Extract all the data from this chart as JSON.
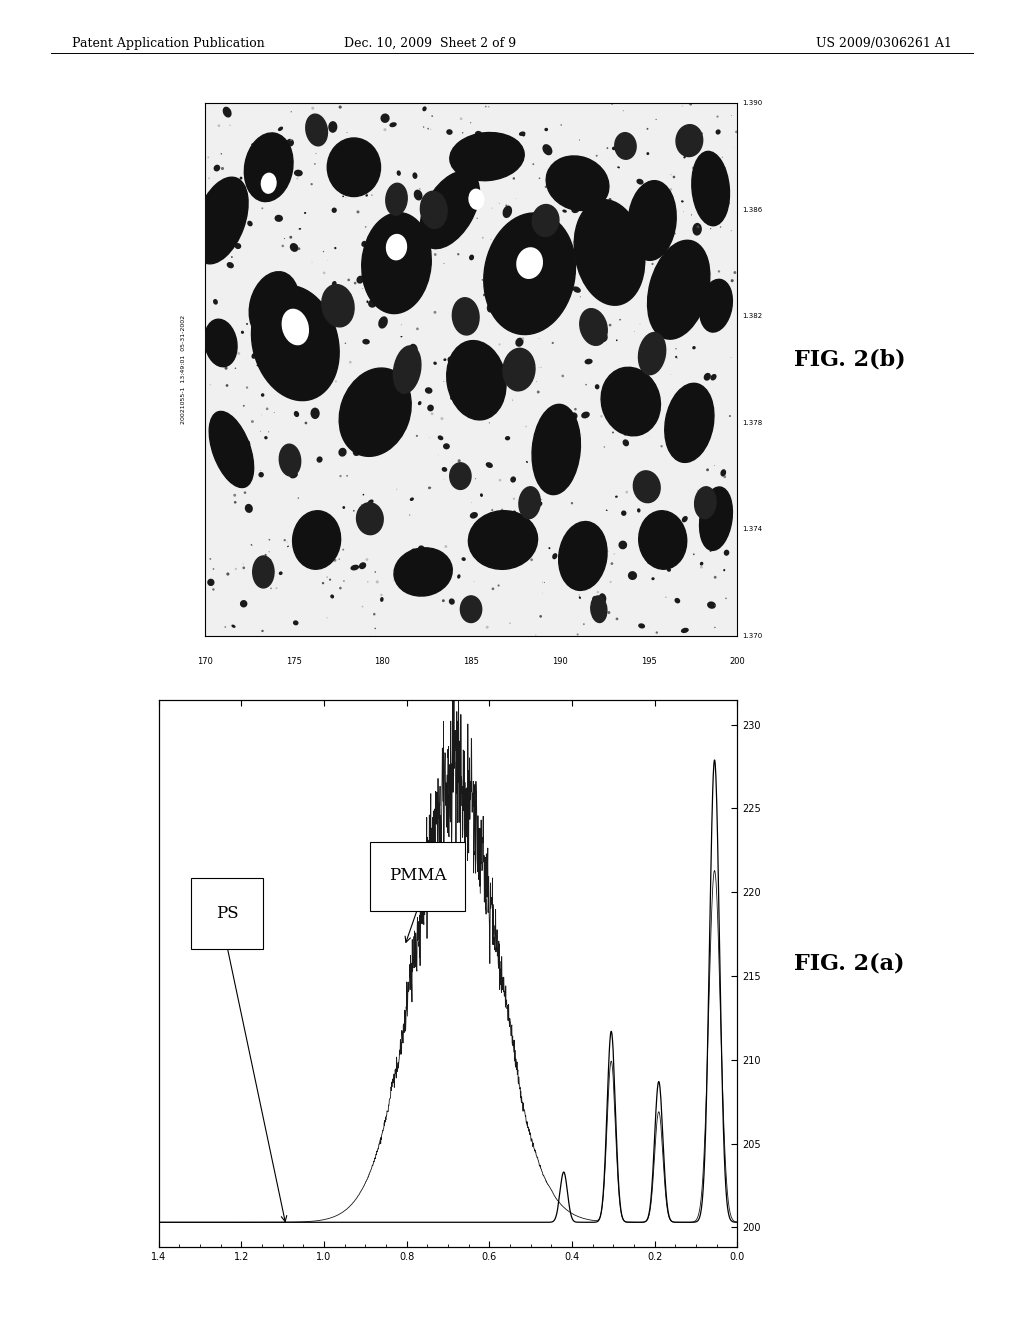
{
  "header_left": "Patent Application Publication",
  "header_center": "Dec. 10, 2009  Sheet 2 of 9",
  "header_right": "US 2009/0306261 A1",
  "fig2b_label": "FIG. 2(b)",
  "fig2a_label": "FIG. 2(a)",
  "ps_label": "PS",
  "pmma_label": "PMMA",
  "background_color": "#ffffff",
  "fig2a_xticks": [
    "1.4",
    "1.2",
    "1.0",
    "0.8",
    "0.6",
    "0.4",
    "0.2",
    "0.0"
  ],
  "fig2a_yticks_right": [
    "200",
    "205",
    "210",
    "215",
    "220",
    "225",
    "230"
  ],
  "ellipses_large": [
    [
      0.03,
      0.78,
      0.09,
      0.17,
      -20
    ],
    [
      0.12,
      0.88,
      0.09,
      0.13,
      -10
    ],
    [
      0.17,
      0.55,
      0.16,
      0.22,
      15
    ],
    [
      0.28,
      0.88,
      0.1,
      0.11,
      0
    ],
    [
      0.36,
      0.7,
      0.13,
      0.19,
      -5
    ],
    [
      0.46,
      0.8,
      0.09,
      0.16,
      -30
    ],
    [
      0.53,
      0.9,
      0.14,
      0.09,
      5
    ],
    [
      0.61,
      0.68,
      0.17,
      0.23,
      -10
    ],
    [
      0.7,
      0.85,
      0.12,
      0.1,
      -20
    ],
    [
      0.76,
      0.72,
      0.13,
      0.2,
      10
    ],
    [
      0.84,
      0.78,
      0.09,
      0.15,
      -5
    ],
    [
      0.89,
      0.65,
      0.11,
      0.19,
      -15
    ],
    [
      0.95,
      0.84,
      0.07,
      0.14,
      5
    ],
    [
      0.32,
      0.42,
      0.13,
      0.17,
      -20
    ],
    [
      0.51,
      0.48,
      0.11,
      0.15,
      10
    ],
    [
      0.66,
      0.35,
      0.09,
      0.17,
      -5
    ],
    [
      0.8,
      0.44,
      0.11,
      0.13,
      15
    ],
    [
      0.91,
      0.4,
      0.09,
      0.15,
      -10
    ],
    [
      0.05,
      0.35,
      0.07,
      0.15,
      20
    ],
    [
      0.13,
      0.62,
      0.09,
      0.13,
      -15
    ],
    [
      0.56,
      0.18,
      0.13,
      0.11,
      5
    ],
    [
      0.71,
      0.15,
      0.09,
      0.13,
      -8
    ],
    [
      0.41,
      0.12,
      0.11,
      0.09,
      10
    ],
    [
      0.21,
      0.18,
      0.09,
      0.11,
      -5
    ],
    [
      0.86,
      0.18,
      0.09,
      0.11,
      5
    ],
    [
      0.96,
      0.22,
      0.06,
      0.12,
      -8
    ],
    [
      0.03,
      0.55,
      0.06,
      0.09,
      10
    ],
    [
      0.96,
      0.62,
      0.06,
      0.1,
      -10
    ]
  ],
  "ellipses_med": [
    [
      0.25,
      0.62,
      0.06,
      0.08,
      10
    ],
    [
      0.38,
      0.5,
      0.05,
      0.09,
      -10
    ],
    [
      0.49,
      0.6,
      0.05,
      0.07,
      5
    ],
    [
      0.59,
      0.5,
      0.06,
      0.08,
      -5
    ],
    [
      0.73,
      0.58,
      0.05,
      0.07,
      15
    ],
    [
      0.84,
      0.53,
      0.05,
      0.08,
      -10
    ],
    [
      0.43,
      0.8,
      0.05,
      0.07,
      5
    ],
    [
      0.64,
      0.78,
      0.05,
      0.06,
      -5
    ],
    [
      0.11,
      0.12,
      0.04,
      0.06,
      0
    ],
    [
      0.31,
      0.22,
      0.05,
      0.06,
      5
    ],
    [
      0.61,
      0.25,
      0.04,
      0.06,
      -5
    ],
    [
      0.83,
      0.28,
      0.05,
      0.06,
      10
    ],
    [
      0.94,
      0.25,
      0.04,
      0.06,
      -5
    ],
    [
      0.16,
      0.33,
      0.04,
      0.06,
      5
    ],
    [
      0.48,
      0.3,
      0.04,
      0.05,
      0
    ],
    [
      0.36,
      0.82,
      0.04,
      0.06,
      -5
    ],
    [
      0.79,
      0.92,
      0.04,
      0.05,
      5
    ],
    [
      0.91,
      0.93,
      0.05,
      0.06,
      -5
    ],
    [
      0.21,
      0.95,
      0.04,
      0.06,
      10
    ],
    [
      0.5,
      0.05,
      0.04,
      0.05,
      0
    ],
    [
      0.74,
      0.05,
      0.03,
      0.05,
      5
    ]
  ],
  "white_holes": [
    [
      0.17,
      0.58,
      0.05,
      0.07,
      15
    ],
    [
      0.61,
      0.7,
      0.05,
      0.06,
      -10
    ],
    [
      0.36,
      0.73,
      0.04,
      0.05,
      -5
    ],
    [
      0.51,
      0.82,
      0.03,
      0.04,
      5
    ],
    [
      0.12,
      0.85,
      0.03,
      0.04,
      -5
    ]
  ]
}
